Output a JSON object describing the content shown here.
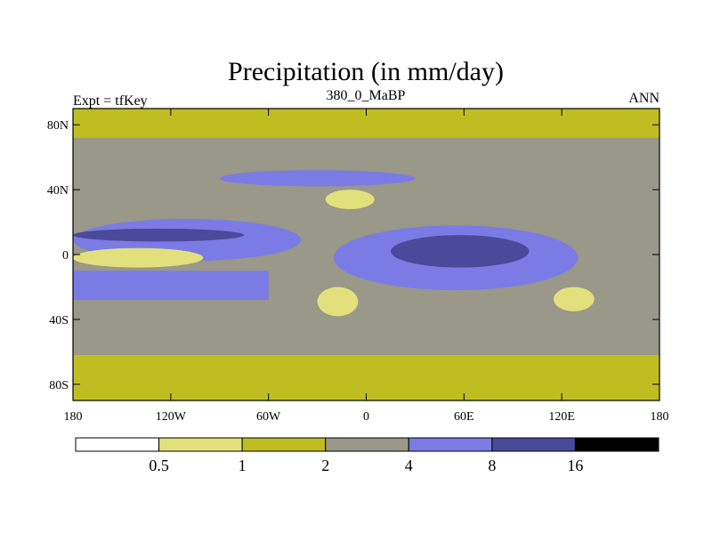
{
  "chart_data": {
    "type": "heatmap",
    "title": "Precipitation (in mm/day)",
    "subtitle_left": "Expt = tfKey",
    "subtitle_center": "380_0_MaBP",
    "subtitle_right": "ANN",
    "projection": "cylindrical equidistant",
    "xlim": [
      -180,
      180
    ],
    "ylim": [
      -90,
      90
    ],
    "x_ticks": [
      {
        "value": -180,
        "label": "180"
      },
      {
        "value": -120,
        "label": "120W"
      },
      {
        "value": -60,
        "label": "60W"
      },
      {
        "value": 0,
        "label": "0"
      },
      {
        "value": 60,
        "label": "60E"
      },
      {
        "value": 120,
        "label": "120E"
      },
      {
        "value": 180,
        "label": "180"
      }
    ],
    "y_ticks": [
      {
        "value": 80,
        "label": "80N"
      },
      {
        "value": 40,
        "label": "40N"
      },
      {
        "value": 0,
        "label": "0"
      },
      {
        "value": -40,
        "label": "40S"
      },
      {
        "value": -80,
        "label": "80S"
      }
    ],
    "colorbar": {
      "levels": [
        0.5,
        1,
        2,
        4,
        8,
        16
      ],
      "level_labels": [
        "0.5",
        "1",
        "2",
        "4",
        "8",
        "16"
      ],
      "colors": [
        "#ffffff",
        "#e2e07c",
        "#c0bd22",
        "#999889",
        "#7b7be6",
        "#4a4a9a",
        "#000000"
      ]
    },
    "regions": [
      {
        "name": "base",
        "value_range": "2-4",
        "lon": [
          -180,
          180
        ],
        "lat": [
          -90,
          90
        ]
      },
      {
        "name": "arctic-band",
        "value_range": "1-2",
        "lon": [
          -180,
          180
        ],
        "lat": [
          72,
          90
        ]
      },
      {
        "name": "antarctic-dry",
        "value_range": "1-2",
        "lon": [
          -180,
          180
        ],
        "lat": [
          -90,
          -62
        ]
      },
      {
        "name": "pacific-itcz",
        "value_range": "4-8",
        "lon": [
          -180,
          -40
        ],
        "lat": [
          -4,
          22
        ]
      },
      {
        "name": "pacific-itcz-core",
        "value_range": "8-16",
        "lon": [
          -180,
          -75
        ],
        "lat": [
          8,
          16
        ]
      },
      {
        "name": "equatorial-dry-tongue",
        "value_range": "0.5-1",
        "lon": [
          -180,
          -100
        ],
        "lat": [
          -8,
          4
        ]
      },
      {
        "name": "south-pacific-band",
        "value_range": "4-8",
        "lon": [
          -180,
          -60
        ],
        "lat": [
          -28,
          -10
        ]
      },
      {
        "name": "north-midlat-storm-track",
        "value_range": "4-8",
        "lon": [
          -90,
          30
        ],
        "lat": [
          42,
          52
        ]
      },
      {
        "name": "east-hemisphere-wet",
        "value_range": "4-8",
        "lon": [
          -20,
          130
        ],
        "lat": [
          -22,
          18
        ]
      },
      {
        "name": "east-hemisphere-core",
        "value_range": "8-16",
        "lon": [
          15,
          100
        ],
        "lat": [
          -8,
          12
        ]
      },
      {
        "name": "subtropical-dry-north",
        "value_range": "0.5-1",
        "lon": [
          -25,
          5
        ],
        "lat": [
          28,
          40
        ]
      },
      {
        "name": "subtropical-dry-south-west",
        "value_range": "0.5-1",
        "lon": [
          -30,
          -5
        ],
        "lat": [
          -38,
          -20
        ]
      },
      {
        "name": "subtropical-dry-south-east",
        "value_range": "0.5-1",
        "lon": [
          115,
          140
        ],
        "lat": [
          -35,
          -20
        ]
      }
    ]
  }
}
